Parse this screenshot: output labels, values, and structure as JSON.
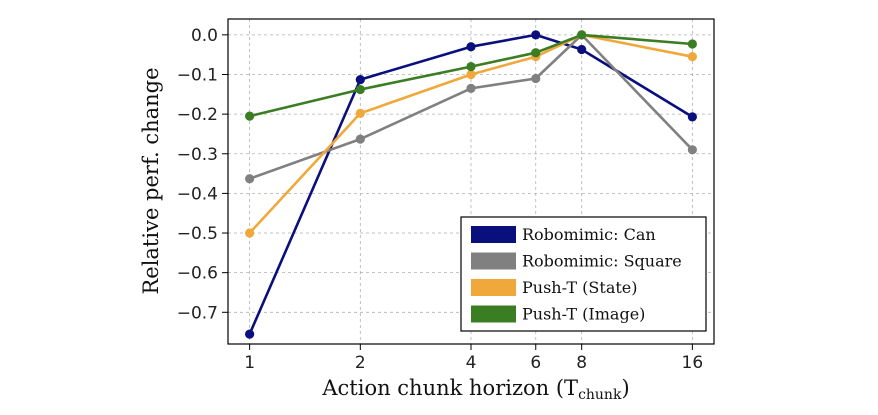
{
  "chart_data": {
    "type": "line",
    "xlabel": "Action chunk horizon (T",
    "xlabel_sub": "chunk",
    "xlabel_close": ")",
    "ylabel": "Relative perf. change",
    "x": [
      1,
      2,
      4,
      6,
      8,
      16
    ],
    "x_tick_labels": [
      "1",
      "2",
      "4",
      "6",
      "8",
      "16"
    ],
    "x_scale": "log2",
    "y_ticks": [
      0.0,
      -0.1,
      -0.2,
      -0.3,
      -0.4,
      -0.5,
      -0.6,
      -0.7
    ],
    "y_tick_labels": [
      "0.0",
      "−0.1",
      "−0.2",
      "−0.3",
      "−0.4",
      "−0.5",
      "−0.6",
      "−0.7"
    ],
    "ylim": [
      -0.78,
      0.04
    ],
    "grid": true,
    "legend_position": "bottom-right",
    "series": [
      {
        "name": "Robomimic: Can",
        "color": "#0a0f7e",
        "values": [
          -0.755,
          -0.113,
          -0.03,
          0.0,
          -0.037,
          -0.207
        ]
      },
      {
        "name": "Robomimic: Square",
        "color": "#808080",
        "values": [
          -0.363,
          -0.263,
          -0.135,
          -0.11,
          0.0,
          -0.29
        ]
      },
      {
        "name": "Push-T (State)",
        "color": "#f0a83a",
        "values": [
          -0.5,
          -0.198,
          -0.1,
          -0.055,
          0.0,
          -0.055
        ]
      },
      {
        "name": "Push-T (Image)",
        "color": "#3a7d22",
        "values": [
          -0.205,
          -0.138,
          -0.08,
          -0.045,
          0.0,
          -0.023
        ]
      }
    ]
  }
}
